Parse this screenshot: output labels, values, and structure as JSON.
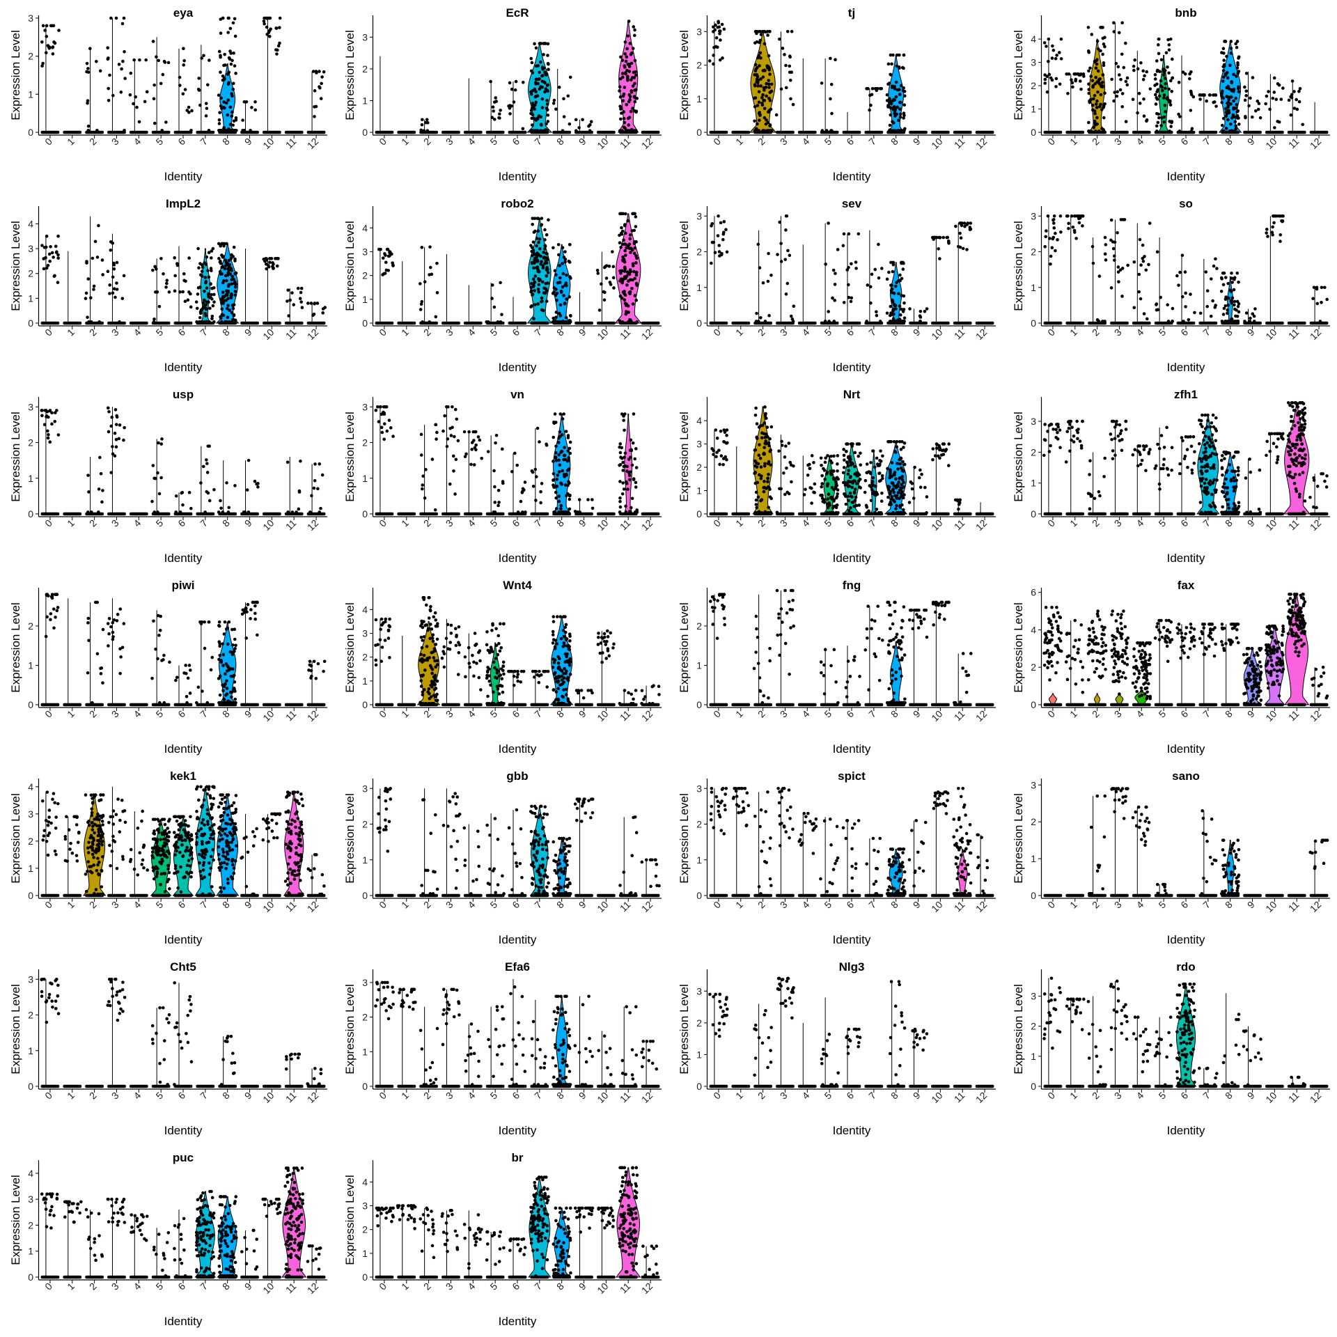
{
  "chart_data": {
    "type": "violin",
    "xlabel": "Identity",
    "ylabel": "Expression Level",
    "categories": [
      "0",
      "1",
      "2",
      "3",
      "4",
      "5",
      "6",
      "7",
      "8",
      "9",
      "10",
      "11",
      "12"
    ],
    "palette": [
      "#F8766D",
      "#E18A00",
      "#BE9C00",
      "#8CAB00",
      "#24B700",
      "#00BE70",
      "#00C1AB",
      "#00BBDA",
      "#00ACFC",
      "#8B93FF",
      "#D575FE",
      "#F962DD",
      "#FF65AC"
    ],
    "panels": [
      {
        "gene": "eya",
        "ymax": 3,
        "yticks": [
          0,
          1,
          2,
          3
        ],
        "spread": [
          2.5,
          0,
          1,
          2,
          0.8,
          1.1,
          1,
          1,
          0.7,
          0.5,
          2.8,
          0,
          1.3
        ],
        "vmax": [
          2.8,
          0,
          2.2,
          3,
          1.9,
          2.5,
          2.2,
          2.3,
          3,
          0.8,
          3,
          0,
          1.6
        ],
        "violin": {
          "8": [
            1.8,
            0.8
          ]
        }
      },
      {
        "gene": "EcR",
        "ymax": 3.6,
        "yticks": [
          0,
          1,
          2,
          3
        ],
        "spread": [
          0,
          0,
          0.3,
          0,
          0,
          1,
          1,
          1,
          0.7,
          0.3,
          0,
          1.3,
          0
        ],
        "vmax": [
          2.4,
          0,
          0.4,
          0,
          1.7,
          1.6,
          1.6,
          2.8,
          2,
          0.4,
          0,
          3.5,
          0
        ],
        "violin": {
          "7": [
            2.8,
            1.2
          ],
          "11": [
            3.5,
            1
          ]
        }
      },
      {
        "gene": "tj",
        "ymax": 3.4,
        "yticks": [
          0,
          1,
          2,
          3
        ],
        "spread": [
          2.8,
          0,
          1.3,
          1.8,
          0,
          0.6,
          0,
          1.3,
          1.1,
          0,
          0,
          0,
          0
        ],
        "vmax": [
          3.3,
          0,
          3,
          3,
          2.2,
          2.2,
          0.6,
          1.3,
          2.3,
          0,
          0,
          0,
          0
        ],
        "violin": {
          "2": [
            3,
            1.3
          ],
          "8": [
            2.3,
            0.8
          ]
        }
      },
      {
        "gene": "bnb",
        "ymax": 4.9,
        "yticks": [
          0,
          1,
          2,
          3,
          4
        ],
        "spread": [
          2.8,
          2.4,
          2,
          2.8,
          2,
          2,
          1.7,
          1.6,
          1.7,
          1.6,
          1.5,
          1.4,
          0
        ],
        "vmax": [
          4,
          2.5,
          4.5,
          4.7,
          3.5,
          4,
          3.3,
          1.6,
          3.9,
          2.6,
          2.5,
          2.2,
          1.3
        ],
        "violin": {
          "2": [
            4,
            0.8
          ],
          "5": [
            3.3,
            0.5
          ],
          "8": [
            3.9,
            1.1
          ]
        }
      },
      {
        "gene": "ImpL2",
        "ymax": 4.6,
        "yticks": [
          0,
          1,
          2,
          3,
          4
        ],
        "spread": [
          2.8,
          0,
          2,
          2.2,
          0,
          1.4,
          1.6,
          1.3,
          1.5,
          0,
          2.6,
          1,
          0.6
        ],
        "vmax": [
          3.5,
          2.9,
          4.3,
          3.6,
          0,
          2.6,
          3.1,
          3,
          3.2,
          3,
          2.6,
          1.4,
          0.8
        ],
        "violin": {
          "7": [
            3,
            0.5
          ],
          "8": [
            3.2,
            1.1
          ]
        }
      },
      {
        "gene": "robo2",
        "ymax": 4.8,
        "yticks": [
          0,
          1,
          2,
          3,
          4
        ],
        "spread": [
          2.7,
          0,
          1.5,
          0,
          0,
          0.5,
          0,
          2.5,
          0.8,
          0,
          2,
          2.2,
          0
        ],
        "vmax": [
          3.1,
          2.6,
          3.2,
          2.9,
          1.6,
          1.7,
          1.1,
          4.4,
          3.3,
          1.3,
          3,
          4.6,
          0
        ],
        "violin": {
          "7": [
            4.4,
            1.2
          ],
          "8": [
            3.3,
            0.9
          ],
          "11": [
            4.6,
            1.3
          ]
        }
      },
      {
        "gene": "sev",
        "ymax": 3.2,
        "yticks": [
          0,
          1,
          2,
          3
        ],
        "spread": [
          2.3,
          0,
          1,
          1.6,
          0,
          1,
          1.3,
          1,
          0.5,
          0.3,
          2.4,
          2.7,
          0
        ],
        "vmax": [
          3,
          0,
          2.6,
          3,
          2.2,
          2.8,
          2.5,
          2.6,
          1.7,
          0.4,
          2.4,
          2.8,
          0
        ],
        "violin": {
          "8": [
            1.7,
            0.6
          ]
        }
      },
      {
        "gene": "so",
        "ymax": 3.2,
        "yticks": [
          0,
          1,
          2,
          3
        ],
        "spread": [
          2.4,
          2.8,
          0.8,
          2.2,
          1.6,
          0.8,
          1,
          1,
          0.5,
          0.3,
          2.9,
          0,
          0.6
        ],
        "vmax": [
          3,
          3,
          2.4,
          2.9,
          2.8,
          2.4,
          1.9,
          1.8,
          1.4,
          0.4,
          3,
          0,
          1
        ],
        "violin": {
          "8": [
            1.3,
            0.3
          ]
        }
      },
      {
        "gene": "usp",
        "ymax": 3.2,
        "yticks": [
          0,
          1,
          2,
          3
        ],
        "spread": [
          2.7,
          0,
          0.7,
          2.4,
          0,
          1,
          0.3,
          1,
          0.4,
          0.5,
          0,
          0.4,
          0.6
        ],
        "vmax": [
          2.9,
          0,
          1.6,
          3,
          0,
          2.1,
          0.6,
          1.9,
          1.5,
          1.5,
          0,
          1.6,
          1.4
        ],
        "violin": {}
      },
      {
        "gene": "vn",
        "ymax": 3.2,
        "yticks": [
          0,
          1,
          2,
          3
        ],
        "spread": [
          2.8,
          0,
          1.2,
          2.2,
          2,
          1.3,
          1,
          1.2,
          1,
          0.3,
          0,
          1.3,
          0
        ],
        "vmax": [
          3,
          0,
          2.5,
          3,
          2.3,
          2.2,
          1.7,
          2.4,
          2.8,
          0.4,
          0,
          2.8,
          0
        ],
        "violin": {
          "8": [
            2.8,
            0.9
          ],
          "11": [
            2.8,
            0.4
          ]
        }
      },
      {
        "gene": "Nrt",
        "ymax": 4.9,
        "yticks": [
          0,
          1,
          2,
          3,
          4
        ],
        "spread": [
          2.8,
          0,
          2,
          2,
          1.5,
          1.2,
          1.6,
          1.3,
          1.5,
          1.2,
          2.7,
          0.5,
          0
        ],
        "vmax": [
          3.6,
          2.9,
          4.6,
          3.4,
          2.5,
          2.5,
          3,
          2.7,
          3.1,
          2,
          3,
          0.6,
          0.5
        ],
        "violin": {
          "2": [
            4.6,
            1
          ],
          "5": [
            2.5,
            0.6
          ],
          "6": [
            3,
            0.8
          ],
          "7": [
            2.7,
            0.3
          ],
          "8": [
            3.1,
            1.1
          ]
        }
      },
      {
        "gene": "zfh1",
        "ymax": 3.7,
        "yticks": [
          0,
          1,
          2,
          3
        ],
        "spread": [
          2.5,
          2.6,
          1,
          2.6,
          2,
          2,
          2,
          1.6,
          0.7,
          0.4,
          2.4,
          2.3,
          0.9
        ],
        "vmax": [
          2.9,
          3,
          2,
          3,
          2.2,
          2.8,
          2.5,
          3.2,
          2,
          1.8,
          2.6,
          3.6,
          1.3
        ],
        "violin": {
          "7": [
            3.2,
            1.1
          ],
          "8": [
            2,
            0.7
          ],
          "11": [
            3.6,
            1.3
          ]
        }
      },
      {
        "gene": "piwi",
        "ymax": 2.9,
        "yticks": [
          0,
          1,
          2
        ],
        "spread": [
          2.6,
          0,
          1.2,
          2,
          0,
          1.3,
          0.8,
          1.1,
          0.7,
          2.5,
          0,
          0,
          1
        ],
        "vmax": [
          2.8,
          2.7,
          2.6,
          2.7,
          0,
          2.4,
          1,
          2.1,
          2.1,
          2.6,
          0,
          0,
          1.1
        ],
        "violin": {
          "8": [
            2.1,
            0.9
          ]
        }
      },
      {
        "gene": "Wnt4",
        "ymax": 4.8,
        "yticks": [
          0,
          1,
          2,
          3,
          4
        ],
        "spread": [
          2.8,
          0,
          2,
          2.5,
          2,
          1.4,
          1.4,
          1.4,
          1.5,
          0.5,
          2.8,
          0.4,
          0.6
        ],
        "vmax": [
          3.6,
          2.9,
          4.5,
          3.6,
          3,
          3.4,
          1.4,
          1.4,
          3.7,
          0.6,
          3.1,
          0.6,
          0.8
        ],
        "violin": {
          "2": [
            3.5,
            1.1
          ],
          "5": [
            2.6,
            0.5
          ],
          "8": [
            3.7,
            1.1
          ]
        }
      },
      {
        "gene": "fng",
        "ymax": 2.9,
        "yticks": [
          0,
          1,
          2
        ],
        "spread": [
          2.6,
          0,
          1.3,
          2.3,
          0,
          0.7,
          0.6,
          1.3,
          0.8,
          2.3,
          2.5,
          0.6,
          0
        ],
        "vmax": [
          2.8,
          0,
          2.8,
          2.9,
          0,
          1.4,
          1.5,
          2.5,
          2.6,
          2.4,
          2.6,
          1.3,
          0
        ],
        "violin": {
          "8": [
            1.6,
            0.6
          ]
        }
      },
      {
        "gene": "fax",
        "ymax": 6.1,
        "yticks": [
          0,
          2,
          4,
          6
        ],
        "spread": [
          3.5,
          2.8,
          3.2,
          3.2,
          2,
          3.7,
          3.7,
          3.7,
          3.7,
          1.5,
          2.7,
          4.6,
          1.2
        ],
        "vmax": [
          5.2,
          4.5,
          5,
          5,
          3.3,
          4.5,
          4.3,
          4.3,
          4.3,
          3,
          4.2,
          5.9,
          2
        ],
        "violin": {
          "0": [
            0.6,
            0.4
          ],
          "2": [
            0.6,
            0.3
          ],
          "3": [
            0.6,
            0.4
          ],
          "4": [
            0.8,
            0.7
          ],
          "9": [
            3,
            0.9
          ],
          "10": [
            4.2,
            1
          ],
          "11": [
            5.9,
            1.2
          ]
        }
      },
      {
        "gene": "kek1",
        "ymax": 4.2,
        "yticks": [
          0,
          1,
          2,
          3,
          4
        ],
        "spread": [
          2.8,
          2.2,
          2.1,
          2.7,
          1.7,
          1.8,
          1.9,
          2.3,
          2.2,
          1.2,
          2.7,
          1.9,
          0.6
        ],
        "vmax": [
          3.8,
          2.9,
          3.7,
          4,
          3.1,
          2.8,
          2.9,
          4,
          3.7,
          3,
          3,
          3.8,
          1.5
        ],
        "violin": {
          "2": [
            3.7,
            1.1
          ],
          "5": [
            2.8,
            1
          ],
          "6": [
            2.9,
            1
          ],
          "7": [
            4,
            1
          ],
          "8": [
            3.7,
            1.1
          ],
          "11": [
            3.8,
            1
          ]
        }
      },
      {
        "gene": "gbb",
        "ymax": 3.2,
        "yticks": [
          0,
          1,
          2,
          3
        ],
        "spread": [
          2.4,
          0,
          1.2,
          1.8,
          0.5,
          1.1,
          1,
          1.1,
          0.6,
          2.6,
          0,
          0.7,
          0.8
        ],
        "vmax": [
          3,
          0,
          3,
          3,
          2,
          2.3,
          2.4,
          2.5,
          1.6,
          2.7,
          0,
          2.2,
          1
        ],
        "violin": {
          "7": [
            2.5,
            0.9
          ],
          "8": [
            1.6,
            0.5
          ]
        }
      },
      {
        "gene": "spict",
        "ymax": 3.2,
        "yticks": [
          0,
          1,
          2,
          3
        ],
        "spread": [
          2.6,
          2.8,
          1.5,
          2.3,
          1.8,
          1,
          1.2,
          0.8,
          0.5,
          1,
          2.8,
          1,
          0.9
        ],
        "vmax": [
          3,
          3,
          2.9,
          3,
          2.3,
          2.2,
          2.1,
          1.6,
          1.3,
          2.1,
          2.9,
          3,
          1.7
        ],
        "violin": {
          "8": [
            1.3,
            0.7
          ],
          "11": [
            1.3,
            0.5
          ]
        }
      },
      {
        "gene": "sano",
        "ymax": 3.1,
        "yticks": [
          0,
          1,
          2,
          3
        ],
        "spread": [
          0,
          0,
          1,
          2.8,
          2.1,
          0.3,
          0,
          1.2,
          0.6,
          0,
          0,
          0,
          1.4
        ],
        "vmax": [
          0,
          0,
          2.7,
          2.9,
          2.4,
          0.3,
          0,
          2.3,
          1.5,
          0,
          0,
          0,
          1.5
        ],
        "violin": {
          "8": [
            1.5,
            0.4
          ]
        }
      },
      {
        "gene": "Cht5",
        "ymax": 3.2,
        "yticks": [
          0,
          1,
          2,
          3
        ],
        "spread": [
          2.7,
          0,
          0,
          2.6,
          0,
          1.3,
          1.6,
          0,
          1,
          0,
          0,
          0.8,
          0.4
        ],
        "vmax": [
          3,
          0,
          0,
          3,
          0,
          2.2,
          2.9,
          0,
          1.4,
          0,
          0,
          0.9,
          0.5
        ],
        "violin": {}
      },
      {
        "gene": "Efa6",
        "ymax": 3.3,
        "yticks": [
          0,
          1,
          2,
          3
        ],
        "spread": [
          2.6,
          2.7,
          1,
          2.2,
          1,
          1.3,
          1.4,
          1.1,
          0.8,
          1,
          0.6,
          0.8,
          1
        ],
        "vmax": [
          3,
          2.8,
          2.3,
          2.8,
          1.8,
          2.3,
          3.1,
          2.5,
          2.6,
          2.6,
          1.6,
          2.3,
          1.3
        ],
        "violin": {
          "8": [
            2.6,
            0.6
          ]
        }
      },
      {
        "gene": "Nlg3",
        "ymax": 3.6,
        "yticks": [
          0,
          1,
          2,
          3
        ],
        "spread": [
          2.6,
          0,
          1.3,
          3,
          0,
          1.1,
          1.6,
          0,
          1.5,
          1.5,
          0,
          0,
          0
        ],
        "vmax": [
          2.9,
          0,
          2.6,
          3.4,
          2,
          2.8,
          1.8,
          0,
          3.3,
          1.8,
          0,
          0,
          0
        ],
        "violin": {}
      },
      {
        "gene": "rdo",
        "ymax": 3.8,
        "yticks": [
          0,
          1,
          2,
          3
        ],
        "spread": [
          2.6,
          2.7,
          1.1,
          2.4,
          1.5,
          1.4,
          1.8,
          0.4,
          1,
          1.2,
          0,
          0.2,
          0
        ],
        "vmax": [
          3.6,
          2.9,
          3,
          3.5,
          2.3,
          2.3,
          3.4,
          0.6,
          3.1,
          2,
          0,
          0.3,
          0
        ],
        "violin": {
          "6": [
            3.4,
            1
          ]
        }
      },
      {
        "gene": "puc",
        "ymax": 4.4,
        "yticks": [
          0,
          1,
          2,
          3,
          4
        ],
        "spread": [
          2.9,
          2.7,
          1.3,
          2.7,
          2.2,
          0.8,
          1.2,
          1.5,
          1,
          0.8,
          2.9,
          2.3,
          0.9
        ],
        "vmax": [
          3.2,
          2.9,
          2.6,
          3,
          2.4,
          1.9,
          2.6,
          3.3,
          3.1,
          1.8,
          3,
          4.2,
          1.2
        ],
        "violin": {
          "7": [
            3.3,
            1
          ],
          "8": [
            3.1,
            1
          ],
          "11": [
            4.2,
            1.2
          ]
        }
      },
      {
        "gene": "br",
        "ymax": 4.8,
        "yticks": [
          0,
          1,
          2,
          3,
          4
        ],
        "spread": [
          2.8,
          2.8,
          1.9,
          1.9,
          2,
          1.4,
          1.5,
          2.6,
          0.7,
          2.7,
          2.6,
          2.5,
          0.8
        ],
        "vmax": [
          2.9,
          3,
          2.9,
          2.8,
          2.8,
          1.9,
          1.6,
          4.2,
          2.9,
          2.9,
          2.9,
          4.6,
          1.3
        ],
        "violin": {
          "7": [
            4.2,
            1.1
          ],
          "8": [
            2.9,
            0.8
          ],
          "11": [
            4.6,
            1.2
          ]
        }
      }
    ]
  }
}
